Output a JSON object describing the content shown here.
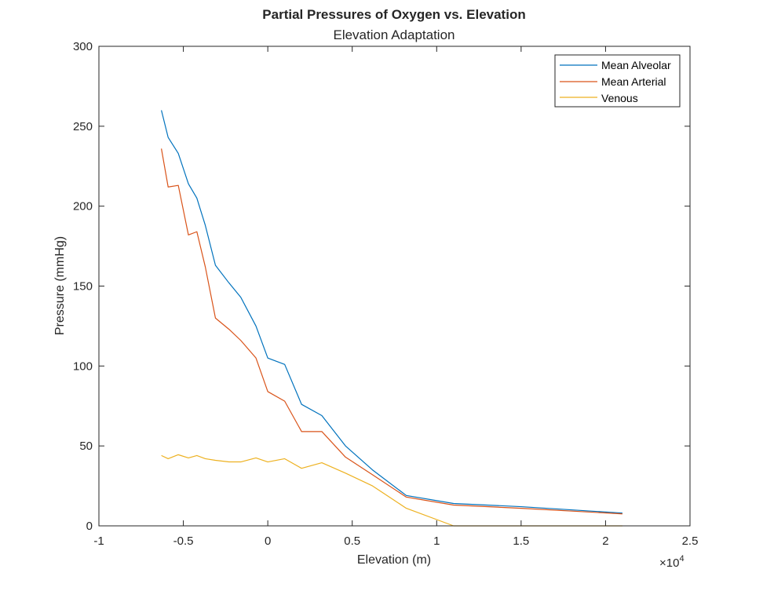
{
  "chart_data": {
    "type": "line",
    "title": "Partial Pressures of Oxygen vs. Elevation",
    "subtitle": "Elevation Adaptation",
    "xlabel": "Elevation (m)",
    "ylabel": "Pressure (mmHg)",
    "x_exponent_label": "×10",
    "x_exponent_power": "4",
    "xlim": [
      -10000,
      25000
    ],
    "ylim": [
      0,
      300
    ],
    "x_ticks": [
      -10000,
      -5000,
      0,
      5000,
      10000,
      15000,
      20000,
      25000
    ],
    "x_tick_labels": [
      "-1",
      "-0.5",
      "0",
      "0.5",
      "1",
      "1.5",
      "2",
      "2.5"
    ],
    "y_ticks": [
      0,
      50,
      100,
      150,
      200,
      250,
      300
    ],
    "y_tick_labels": [
      "0",
      "50",
      "100",
      "150",
      "200",
      "250",
      "300"
    ],
    "legend_position": "top-right",
    "grid": false,
    "series": [
      {
        "name": "Mean Alveolar",
        "color": "#0072BD",
        "x": [
          -6300,
          -5900,
          -5300,
          -4700,
          -4200,
          -3700,
          -3100,
          -2300,
          -1600,
          -700,
          0,
          1000,
          2000,
          3200,
          4600,
          6200,
          8200,
          11000,
          15000,
          21000
        ],
        "y": [
          260,
          243,
          233,
          214,
          205,
          188,
          163,
          152,
          143,
          125,
          105,
          101,
          76,
          69,
          50,
          35,
          19,
          14,
          12,
          8
        ]
      },
      {
        "name": "Mean Arterial",
        "color": "#D95319",
        "x": [
          -6300,
          -5900,
          -5300,
          -4700,
          -4200,
          -3700,
          -3100,
          -2300,
          -1600,
          -700,
          0,
          1000,
          2000,
          3200,
          4600,
          6200,
          8200,
          11000,
          15000,
          21000
        ],
        "y": [
          236,
          212,
          213,
          182,
          184,
          162,
          130,
          123,
          116,
          105,
          84,
          78,
          59,
          59,
          43,
          32,
          18,
          13,
          11,
          7.5
        ]
      },
      {
        "name": "Venous",
        "color": "#EDB120",
        "x": [
          -6300,
          -5900,
          -5300,
          -4700,
          -4200,
          -3700,
          -3100,
          -2300,
          -1600,
          -700,
          0,
          1000,
          2000,
          3200,
          4600,
          6200,
          8200,
          11000,
          15000,
          21000
        ],
        "y": [
          44,
          42,
          44.5,
          42.5,
          44,
          42,
          41,
          40,
          40,
          42.5,
          40,
          42,
          36,
          39.5,
          33,
          25,
          11,
          0,
          0,
          0
        ]
      }
    ]
  }
}
